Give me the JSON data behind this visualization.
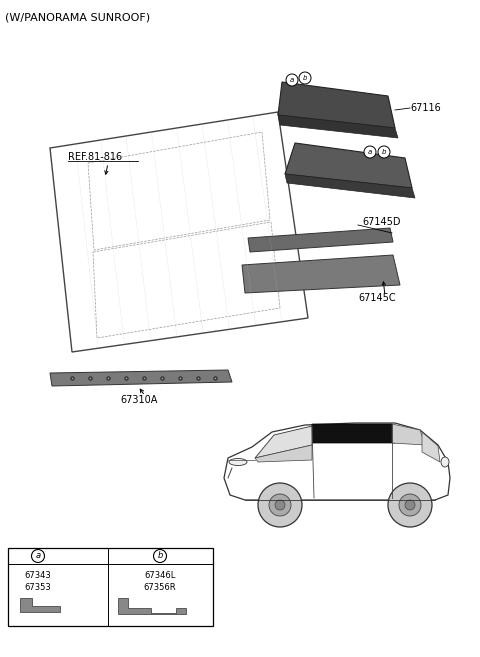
{
  "title": "(W/PANORAMA SUNROOF)",
  "background_color": "#ffffff",
  "font_size_title": 8,
  "font_size_labels": 7,
  "font_size_small": 6,
  "label_67116": "67116",
  "label_ref": "REF.81-816",
  "label_67145D": "67145D",
  "label_67145C": "67145C",
  "label_67310A": "67310A",
  "label_67343": "67343",
  "label_67353": "67353",
  "label_67346L": "67346L",
  "label_67356R": "67356R",
  "circle_a": "a",
  "circle_b": "b"
}
